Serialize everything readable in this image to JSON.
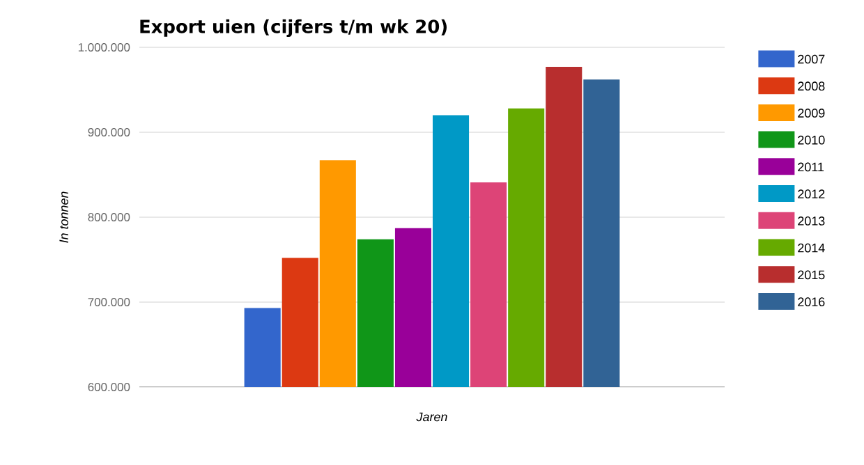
{
  "chart_data": {
    "type": "bar",
    "title": "Export uien (cijfers t/m wk 20)",
    "xlabel": "Jaren",
    "ylabel": "In tonnen",
    "categories": [
      null
    ],
    "series": [
      {
        "name": "2007",
        "color": "#3366cc",
        "values": [
          693000
        ]
      },
      {
        "name": "2008",
        "color": "#dc3912",
        "values": [
          752000
        ]
      },
      {
        "name": "2009",
        "color": "#ff9900",
        "values": [
          867000
        ]
      },
      {
        "name": "2010",
        "color": "#109618",
        "values": [
          774000
        ]
      },
      {
        "name": "2011",
        "color": "#990099",
        "values": [
          787000
        ]
      },
      {
        "name": "2012",
        "color": "#0099c6",
        "values": [
          920000
        ]
      },
      {
        "name": "2013",
        "color": "#dd4477",
        "values": [
          841000
        ]
      },
      {
        "name": "2014",
        "color": "#66aa00",
        "values": [
          928000
        ]
      },
      {
        "name": "2015",
        "color": "#b82e2e",
        "values": [
          977000
        ]
      },
      {
        "name": "2016",
        "color": "#316395",
        "values": [
          962000
        ]
      }
    ],
    "ylim": [
      600000,
      1000000
    ],
    "yticks": [
      {
        "value": 600000,
        "label": "600.000"
      },
      {
        "value": 700000,
        "label": "700.000"
      },
      {
        "value": 800000,
        "label": "800.000"
      },
      {
        "value": 900000,
        "label": "900.000"
      },
      {
        "value": 1000000,
        "label": "1.000.000"
      }
    ],
    "grid": "y",
    "legend": "right"
  }
}
